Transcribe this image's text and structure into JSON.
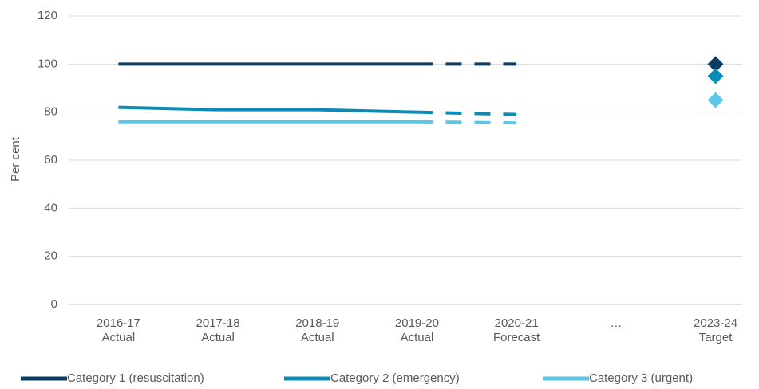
{
  "chart_data": {
    "type": "line",
    "ylabel": "Per cent",
    "categories": [
      [
        "2016-17",
        "Actual"
      ],
      [
        "2017-18",
        "Actual"
      ],
      [
        "2018-19",
        "Actual"
      ],
      [
        "2019-20",
        "Actual"
      ],
      [
        "2020-21",
        "Forecast"
      ],
      [
        "…"
      ],
      [
        "2023-24",
        "Target"
      ]
    ],
    "series": [
      {
        "name": "Category 1 (resuscitation)",
        "color": "#0b3c61",
        "values": [
          100,
          100,
          100,
          100,
          100,
          null,
          100
        ]
      },
      {
        "name": "Category 2 (emergency)",
        "color": "#0c8cb5",
        "values": [
          82,
          81,
          81,
          80,
          79,
          null,
          95
        ]
      },
      {
        "name": "Category 3 (urgent)",
        "color": "#5cc6e6",
        "values": [
          76,
          76,
          76,
          76,
          75.5,
          null,
          85
        ]
      }
    ],
    "dashed_from": 3,
    "ylim": [
      0,
      120
    ],
    "yticks": [
      0,
      20,
      40,
      60,
      80,
      100,
      120
    ],
    "grid": true,
    "legend": "bottom"
  }
}
